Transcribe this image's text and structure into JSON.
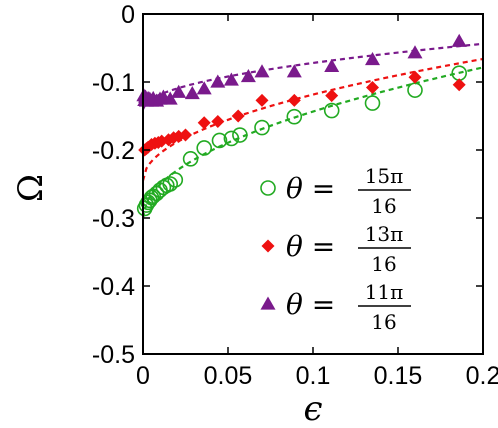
{
  "chart_data": {
    "type": "scatter",
    "xlabel": "ϵ",
    "ylabel": "Ω",
    "xlim": [
      0,
      0.2
    ],
    "ylim": [
      -0.5,
      0
    ],
    "xticks": [
      0,
      0.05,
      0.1,
      0.15,
      0.2
    ],
    "xtick_labels": [
      "0",
      "0.05",
      "0.1",
      "0.15",
      "0.2"
    ],
    "yticks": [
      0,
      -0.1,
      -0.2,
      -0.3,
      -0.4,
      -0.5
    ],
    "ytick_labels": [
      "0",
      "-0.1",
      "-0.2",
      "-0.3",
      "-0.4",
      "-0.5"
    ],
    "grid": false,
    "legend_position": "bottom-right",
    "series": [
      {
        "name": "θ = 15π/16",
        "label_theta": "θ =",
        "label_num": "15π",
        "label_den": "16",
        "marker": "circle-open",
        "color": "#22aa22",
        "x": [
          0.001,
          0.002,
          0.003,
          0.004,
          0.005,
          0.006,
          0.008,
          0.01,
          0.012,
          0.014,
          0.016,
          0.019,
          0.028,
          0.036,
          0.045,
          0.052,
          0.057,
          0.07,
          0.089,
          0.111,
          0.135,
          0.16,
          0.186
        ],
        "y": [
          -0.286,
          -0.281,
          -0.277,
          -0.274,
          -0.27,
          -0.268,
          -0.264,
          -0.259,
          -0.255,
          -0.252,
          -0.25,
          -0.244,
          -0.213,
          -0.197,
          -0.186,
          -0.183,
          -0.178,
          -0.167,
          -0.151,
          -0.142,
          -0.131,
          -0.112,
          -0.087
        ]
      },
      {
        "name": "θ = 13π/16",
        "label_theta": "θ =",
        "label_num": "13π",
        "label_den": "16",
        "marker": "diamond",
        "color": "#ee1111",
        "x": [
          0.001,
          0.002,
          0.003,
          0.005,
          0.007,
          0.009,
          0.011,
          0.015,
          0.018,
          0.021,
          0.025,
          0.036,
          0.044,
          0.056,
          0.07,
          0.089,
          0.111,
          0.135,
          0.16,
          0.186
        ],
        "y": [
          -0.2,
          -0.198,
          -0.196,
          -0.192,
          -0.19,
          -0.189,
          -0.187,
          -0.185,
          -0.182,
          -0.18,
          -0.178,
          -0.16,
          -0.158,
          -0.15,
          -0.127,
          -0.127,
          -0.12,
          -0.108,
          -0.093,
          -0.104
        ]
      },
      {
        "name": "θ = 11π/16",
        "label_theta": "θ =",
        "label_num": "11π",
        "label_den": "16",
        "marker": "triangle",
        "color": "#7a1a8c",
        "x": [
          0.0005,
          0.001,
          0.0015,
          0.002,
          0.003,
          0.004,
          0.005,
          0.006,
          0.008,
          0.01,
          0.012,
          0.016,
          0.021,
          0.029,
          0.036,
          0.044,
          0.052,
          0.062,
          0.07,
          0.089,
          0.111,
          0.135,
          0.16,
          0.186
        ],
        "y": [
          -0.12,
          -0.127,
          -0.122,
          -0.128,
          -0.124,
          -0.125,
          -0.128,
          -0.124,
          -0.128,
          -0.125,
          -0.122,
          -0.125,
          -0.115,
          -0.117,
          -0.11,
          -0.1,
          -0.097,
          -0.092,
          -0.085,
          -0.085,
          -0.077,
          -0.067,
          -0.057,
          -0.04
        ]
      }
    ],
    "fits": [
      {
        "color": "#22aa22",
        "a": -0.3,
        "b": 0.495
      },
      {
        "color": "#ee1111",
        "a": -0.245,
        "b": 0.4
      },
      {
        "color": "#7a1a8c",
        "a": -0.14,
        "b": 0.215
      }
    ]
  }
}
